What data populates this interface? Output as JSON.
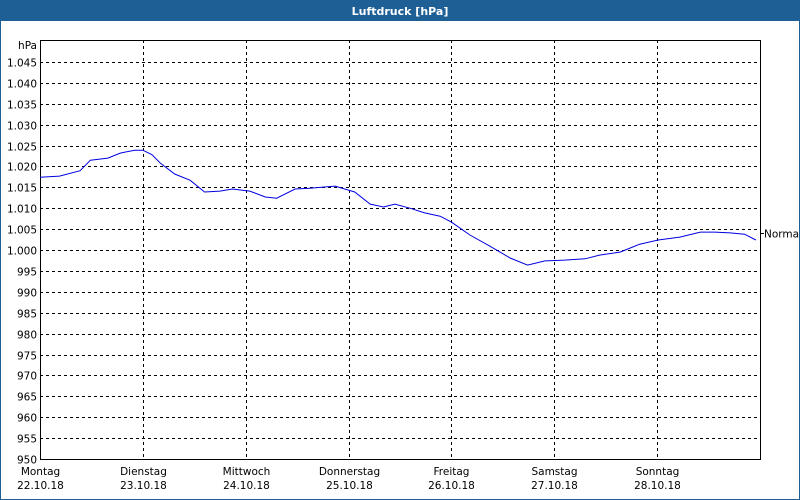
{
  "window": {
    "title": "Luftdruck [hPa]"
  },
  "chart_data": {
    "type": "line",
    "title": "Luftdruck [hPa]",
    "ylabel": "hPa",
    "ylim": [
      950,
      1050
    ],
    "yticks": [
      950,
      955,
      960,
      965,
      970,
      975,
      980,
      985,
      990,
      995,
      1000,
      1005,
      1010,
      1015,
      1020,
      1025,
      1030,
      1035,
      1040,
      1045
    ],
    "ytick_labels": [
      "950",
      "955",
      "960",
      "965",
      "970",
      "975",
      "980",
      "985",
      "990",
      "995",
      "1.000",
      "1.005",
      "1.010",
      "1.015",
      "1.020",
      "1.025",
      "1.030",
      "1.035",
      "1.040",
      "1.045"
    ],
    "xlim": [
      0,
      7
    ],
    "xticks": [
      {
        "day": "Montag",
        "date": "22.10.18"
      },
      {
        "day": "Dienstag",
        "date": "23.10.18"
      },
      {
        "day": "Mittwoch",
        "date": "24.10.18"
      },
      {
        "day": "Donnerstag",
        "date": "25.10.18"
      },
      {
        "day": "Freitag",
        "date": "26.10.18"
      },
      {
        "day": "Samstag",
        "date": "27.10.18"
      },
      {
        "day": "Sonntag",
        "date": "28.10.18"
      }
    ],
    "grid": true,
    "reference": {
      "label": "Normal",
      "value": 1004
    },
    "series": [
      {
        "name": "Luftdruck",
        "color": "#0000e0",
        "points": [
          [
            0.0,
            1017.4
          ],
          [
            0.19,
            1017.7
          ],
          [
            0.39,
            1019.0
          ],
          [
            0.49,
            1021.5
          ],
          [
            0.66,
            1022.0
          ],
          [
            0.78,
            1023.2
          ],
          [
            0.92,
            1023.9
          ],
          [
            1.0,
            1023.9
          ],
          [
            1.09,
            1022.8
          ],
          [
            1.17,
            1020.8
          ],
          [
            1.31,
            1018.2
          ],
          [
            1.46,
            1016.7
          ],
          [
            1.6,
            1013.9
          ],
          [
            1.75,
            1014.1
          ],
          [
            1.87,
            1014.6
          ],
          [
            2.04,
            1014.1
          ],
          [
            2.19,
            1012.7
          ],
          [
            2.3,
            1012.4
          ],
          [
            2.48,
            1014.6
          ],
          [
            2.62,
            1014.8
          ],
          [
            2.87,
            1015.3
          ],
          [
            3.06,
            1013.9
          ],
          [
            3.21,
            1011.0
          ],
          [
            3.34,
            1010.3
          ],
          [
            3.45,
            1011.0
          ],
          [
            3.6,
            1010.0
          ],
          [
            3.74,
            1008.9
          ],
          [
            3.89,
            1008.1
          ],
          [
            4.0,
            1006.7
          ],
          [
            4.18,
            1003.6
          ],
          [
            4.37,
            1001.0
          ],
          [
            4.57,
            998.1
          ],
          [
            4.74,
            996.4
          ],
          [
            4.91,
            997.4
          ],
          [
            5.1,
            997.6
          ],
          [
            5.3,
            997.9
          ],
          [
            5.44,
            998.8
          ],
          [
            5.64,
            999.5
          ],
          [
            5.83,
            1001.4
          ],
          [
            6.01,
            1002.4
          ],
          [
            6.22,
            1003.1
          ],
          [
            6.42,
            1004.3
          ],
          [
            6.56,
            1004.3
          ],
          [
            6.71,
            1004.1
          ],
          [
            6.85,
            1003.8
          ],
          [
            6.96,
            1002.4
          ]
        ]
      }
    ]
  }
}
